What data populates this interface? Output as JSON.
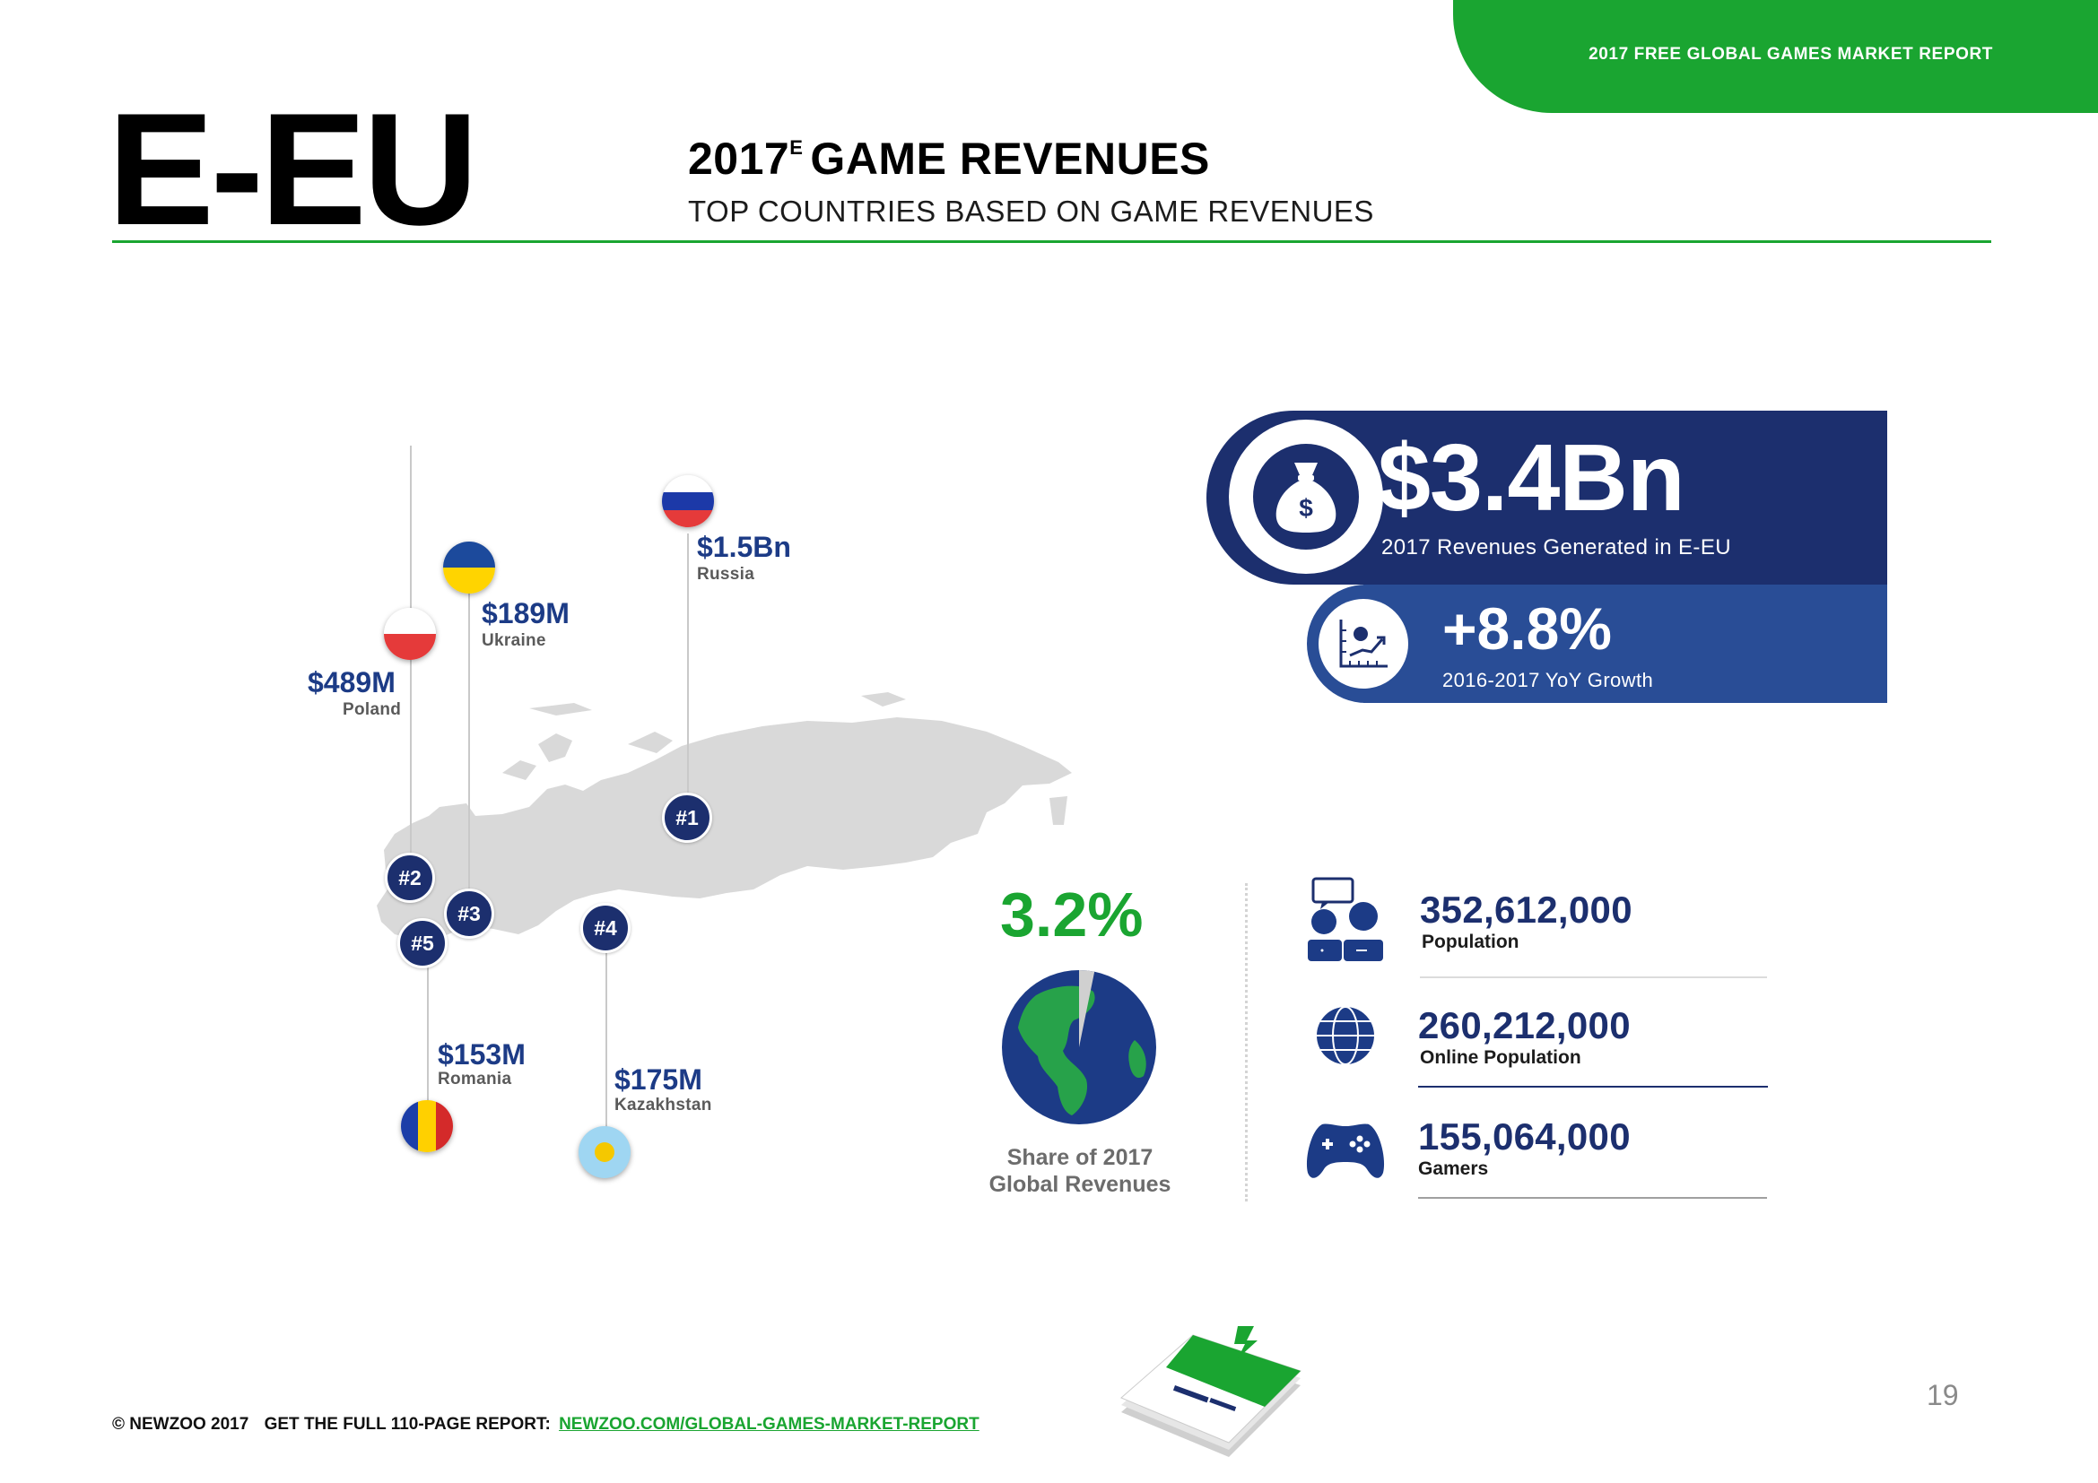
{
  "header": {
    "tab_text": "2017 FREE GLOBAL GAMES MARKET REPORT",
    "region": "E-EU",
    "title_year": "2017",
    "title_super": "E",
    "title_rest": "GAME REVENUES",
    "subtitle": "TOP COUNTRIES BASED ON GAME REVENUES"
  },
  "colors": {
    "brand_green": "#1aa531",
    "navy": "#1c2f6e",
    "mid_blue": "#294d96",
    "value_blue": "#1c3b86",
    "map_gray": "#d9d9d9"
  },
  "countries": [
    {
      "rank": "#1",
      "value": "$1.5Bn",
      "name": "Russia",
      "flag": "russia-flag"
    },
    {
      "rank": "#2",
      "value": "$489M",
      "name": "Poland",
      "flag": "poland-flag"
    },
    {
      "rank": "#3",
      "value": "$189M",
      "name": "Ukraine",
      "flag": "ukraine-flag"
    },
    {
      "rank": "#4",
      "value": "$175M",
      "name": "Kazakhstan",
      "flag": "kazakhstan-flag"
    },
    {
      "rank": "#5",
      "value": "$153M",
      "name": "Romania",
      "flag": "romania-flag"
    }
  ],
  "revenue": {
    "value": "$3.4Bn",
    "label": "2017 Revenues Generated in E-EU",
    "icon": "money-bag-icon",
    "icon_symbol": "$"
  },
  "growth": {
    "value": "+8.8%",
    "label": "2016-2017 YoY Growth",
    "icon": "growth-chart-icon"
  },
  "share": {
    "value": "3.2%",
    "fraction": 0.032,
    "label_line1": "Share of 2017",
    "label_line2": "Global Revenues",
    "icon": "globe-icon"
  },
  "stats": [
    {
      "value": "352,612,000",
      "label": "Population",
      "icon": "people-icon"
    },
    {
      "value": "260,212,000",
      "label": "Online Population",
      "icon": "globe-icon"
    },
    {
      "value": "155,064,000",
      "label": "Gamers",
      "icon": "gamepad-icon"
    }
  ],
  "footer": {
    "copyright": "© NEWZOO 2017",
    "cta": "GET THE FULL 110-PAGE REPORT:",
    "link": "NEWZOO.COM/GLOBAL-GAMES-MARKET-REPORT",
    "page_number": "19",
    "report_cover_icon": "report-book-icon"
  }
}
